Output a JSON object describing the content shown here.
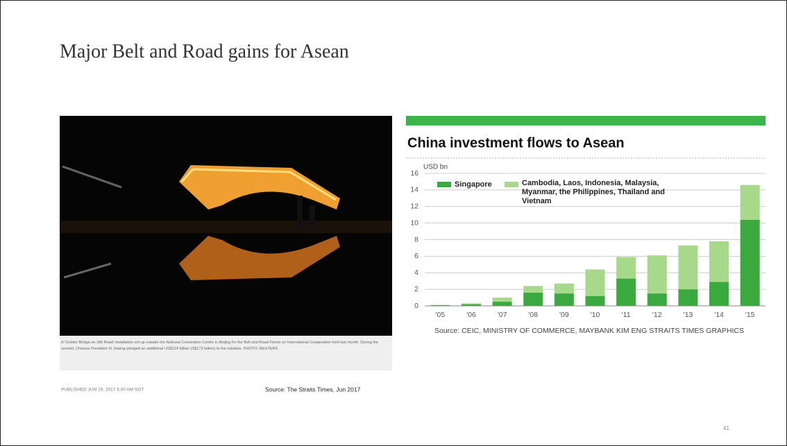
{
  "slide": {
    "title": "Major Belt and Road gains for Asean",
    "photo_caption": "A 'Golden Bridge on Silk Road' installation set up outside the National Convention Centre in Beijing for the Belt and Road Forum on International Cooperation held last month. During the summit, Chinese President Xi Jinping pledged an additional US$124 billion (S$172 billion) to the initiative. PHOTO: REUTERS",
    "published": "PUBLISHED JUN 19, 2017 5:00 AM SGT",
    "source": "Source: The Straits Times, Jun 2017",
    "page_number": "41"
  },
  "chart_data": {
    "type": "stacked_bar",
    "title": "China investment flows to Asean",
    "y_label": "USD bn",
    "categories": [
      "'05",
      "'06",
      "'07",
      "'08",
      "'09",
      "'10",
      "'11",
      "'12",
      "'13",
      "'14",
      "'15"
    ],
    "series": [
      {
        "name": "Singapore",
        "color": "#3aaa3e",
        "values": [
          0.1,
          0.2,
          0.5,
          1.6,
          1.5,
          1.2,
          3.3,
          1.5,
          2.0,
          2.9,
          10.4
        ]
      },
      {
        "name": "Cambodia, Laos, Indonesia, Malaysia, Myanmar, the Philippines, Thailand and Vietnam",
        "color": "#a6d98a",
        "values": [
          0.0,
          0.1,
          0.5,
          0.8,
          1.2,
          3.2,
          2.6,
          4.6,
          5.3,
          4.9,
          4.2
        ]
      }
    ],
    "ylim": [
      0,
      16
    ],
    "yticks": [
      0,
      2,
      4,
      6,
      8,
      10,
      12,
      14,
      16
    ],
    "grid": true,
    "source": "Source: CEIC, MINISTRY OF COMMERCE, MAYBANK KIM ENG  STRAITS TIMES GRAPHICS"
  }
}
